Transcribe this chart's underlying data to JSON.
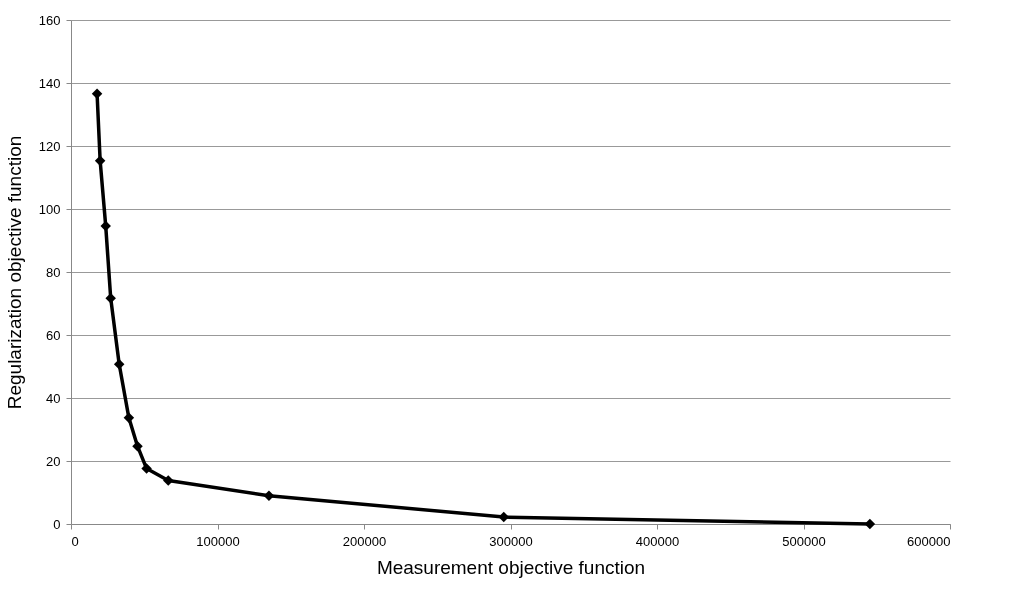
{
  "chart_data": {
    "type": "line",
    "xlabel": "Measurement objective function",
    "ylabel": "Regularization objective function",
    "x": [
      17800,
      19900,
      23700,
      27100,
      32900,
      39500,
      45400,
      51600,
      66400,
      135100,
      295400,
      545300
    ],
    "series": [
      {
        "color": "#000000",
        "values": [
          136.6,
          115.3,
          94.6,
          71.7,
          50.7,
          33.7,
          24.7,
          17.6,
          13.8,
          9.0,
          2.2,
          0
        ]
      }
    ],
    "xlim": [
      0,
      600000
    ],
    "xticks": [
      0,
      100000,
      200000,
      300000,
      400000,
      500000,
      600000
    ],
    "ylim": [
      0,
      160
    ],
    "yticks": [
      0,
      20,
      40,
      60,
      80,
      100,
      120,
      140,
      160
    ],
    "grid": "y",
    "marker": "diamond",
    "legend": false,
    "line_style": "solid"
  }
}
